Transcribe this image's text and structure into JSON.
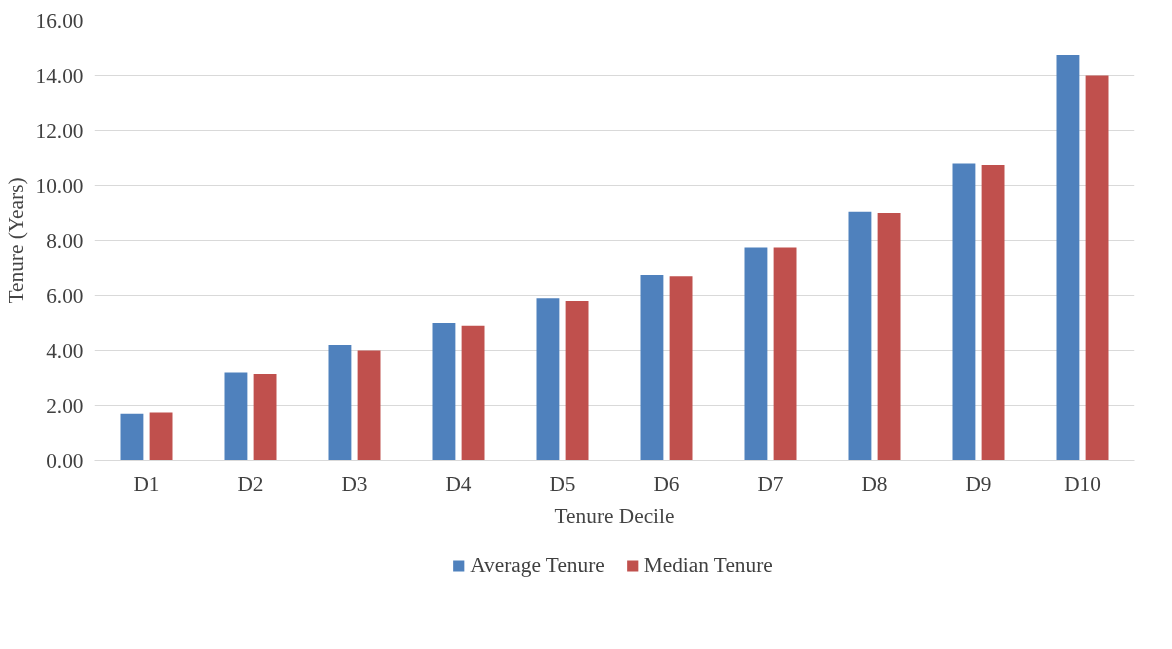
{
  "chart_data": {
    "type": "bar",
    "xlabel": "Tenure Decile",
    "ylabel": "Tenure (Years)",
    "categories": [
      "D1",
      "D2",
      "D3",
      "D4",
      "D5",
      "D6",
      "D7",
      "D8",
      "D9",
      "D10"
    ],
    "series": [
      {
        "name": "Average Tenure",
        "color": "#4f81bd",
        "values": [
          1.7,
          3.2,
          4.2,
          5.0,
          5.9,
          6.75,
          7.75,
          9.05,
          10.8,
          14.75
        ]
      },
      {
        "name": "Median Tenure",
        "color": "#c0504d",
        "values": [
          1.75,
          3.15,
          4.0,
          4.9,
          5.8,
          6.7,
          7.75,
          9.0,
          10.75,
          14.0
        ]
      }
    ],
    "ylim": [
      0,
      16
    ],
    "yticks": [
      {
        "value": 0,
        "label": "0.00"
      },
      {
        "value": 2,
        "label": "2.00"
      },
      {
        "value": 4,
        "label": "4.00"
      },
      {
        "value": 6,
        "label": "6.00"
      },
      {
        "value": 8,
        "label": "8.00"
      },
      {
        "value": 10,
        "label": "10.00"
      },
      {
        "value": 12,
        "label": "12.00"
      },
      {
        "value": 14,
        "label": "14.00"
      },
      {
        "value": 16,
        "label": "16.00"
      }
    ],
    "grid": "y",
    "legend": "bottom"
  }
}
